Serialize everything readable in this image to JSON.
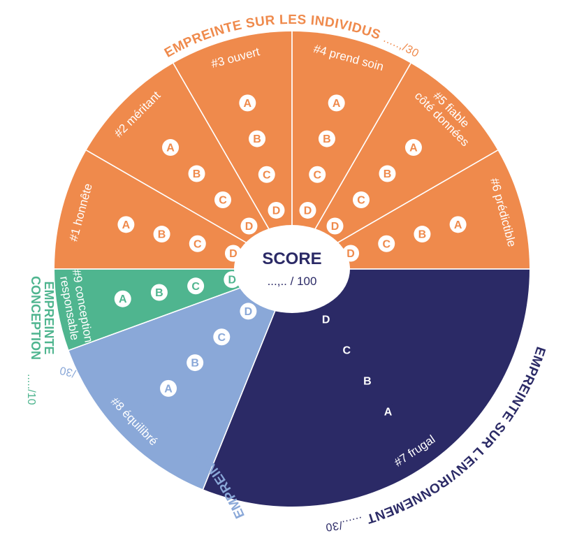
{
  "center": {
    "title": "SCORE",
    "value": "...,.. / 100"
  },
  "categories": [
    {
      "id": "individus",
      "title": "EMPREINTE SUR LES INDIVIDUS",
      "fraction": ".....,/30",
      "color": "#ef8a4c",
      "light": "#f9d4b9",
      "text": "#ef8a4c"
    },
    {
      "id": "environnement",
      "title": "EMPREINTE SUR L'ENVIRONNEMENT",
      "fraction": "....../30",
      "color": "#2b2a66",
      "light": "#a29bbb",
      "text": "#2b2a66"
    },
    {
      "id": "economie",
      "title": "EMPREINTE SUR L'ÉCONOMIE",
      "fraction": "...,../30",
      "color": "#8aa8d8",
      "light": "#d2dcf2",
      "text": "#8aa8d8"
    },
    {
      "id": "conception",
      "title_lines": [
        "EMPREINTE",
        "CONCEPTION"
      ],
      "fraction": "...../10",
      "color": "#4fb58f",
      "light": "#c5e5d6",
      "text": "#4fb58f"
    }
  ],
  "segments": [
    {
      "id": "honnete",
      "label": "#1 honnête",
      "category": "individus",
      "grades": [
        "A",
        "B",
        "C",
        "D"
      ]
    },
    {
      "id": "meritant",
      "label": "#2 méritant",
      "category": "individus",
      "grades": [
        "A",
        "B",
        "C",
        "D"
      ]
    },
    {
      "id": "ouvert",
      "label": "#3 ouvert",
      "category": "individus",
      "grades": [
        "A",
        "B",
        "C",
        "D"
      ]
    },
    {
      "id": "prend-soin",
      "label": "#4 prend soin",
      "category": "individus",
      "grades": [
        "A",
        "B",
        "C",
        "D"
      ]
    },
    {
      "id": "fiable",
      "label_lines": [
        "#5 fiable",
        "côté données"
      ],
      "category": "individus",
      "grades": [
        "A",
        "B",
        "C",
        "D"
      ]
    },
    {
      "id": "predictible",
      "label": "#6 prédictible",
      "category": "individus",
      "grades": [
        "A",
        "B",
        "C",
        "D"
      ]
    },
    {
      "id": "frugal",
      "label": "#7 frugal",
      "category": "environnement",
      "grades": [
        "A",
        "B",
        "C",
        "D"
      ]
    },
    {
      "id": "equilibre",
      "label": "#8 équilibré",
      "category": "economie",
      "grades": [
        "A",
        "B",
        "C",
        "D"
      ]
    },
    {
      "id": "conception-responsable",
      "label_lines": [
        "#9 conception",
        "responsable"
      ],
      "category": "conception",
      "grades": [
        "A",
        "B",
        "C",
        "D"
      ]
    }
  ]
}
